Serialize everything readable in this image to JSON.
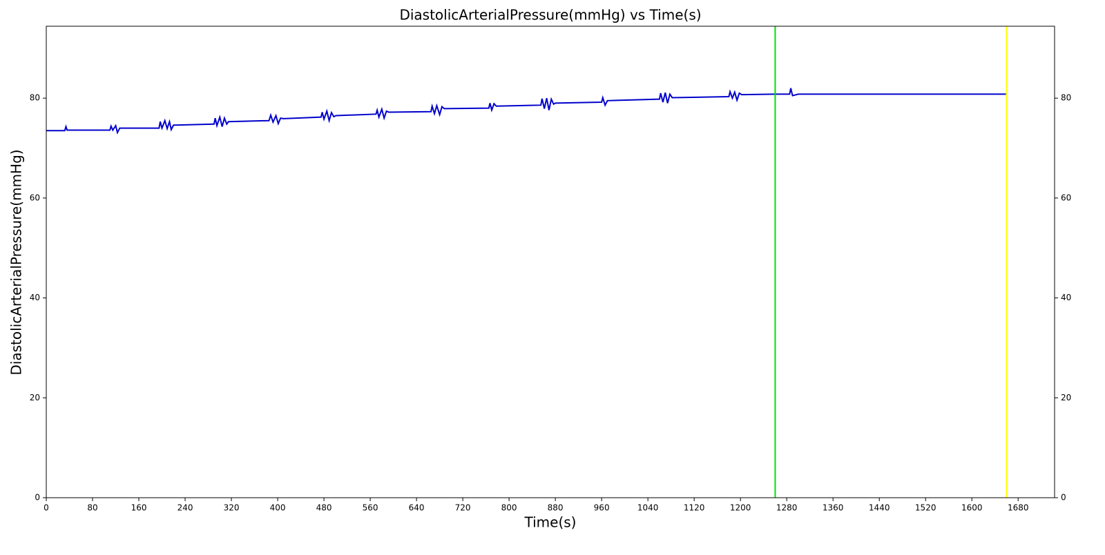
{
  "chart_data": {
    "type": "line",
    "title": "DiastolicArterialPressure(mmHg) vs Time(s)",
    "x_label": "Time(s)",
    "y_label": "DiastolicArterialPressure(mmHg)",
    "xlim": [
      0,
      1743
    ],
    "xticks": [
      0,
      80,
      160,
      240,
      320,
      400,
      480,
      560,
      640,
      720,
      800,
      880,
      960,
      1040,
      1120,
      1200,
      1280,
      1360,
      1440,
      1520,
      1600,
      1680
    ],
    "ylim": [
      0,
      94.4
    ],
    "yticks": [
      0,
      20,
      40,
      60,
      80
    ],
    "y2lim": [
      0,
      94.4
    ],
    "y2ticks": [
      0,
      20,
      40,
      60,
      80
    ],
    "vlines": [
      {
        "x": 1260,
        "color": "#00e000"
      },
      {
        "x": 1660,
        "color": "#ffff00"
      }
    ],
    "series": [
      {
        "name": "DiastolicArterialPressure",
        "color": "#0000cc",
        "x": [
          0,
          32,
          34,
          36,
          110,
          112,
          115,
          120,
          123,
          127,
          195,
          197,
          200,
          205,
          209,
          213,
          216,
          220,
          290,
          292,
          295,
          300,
          304,
          308,
          312,
          315,
          385,
          388,
          392,
          397,
          401,
          405,
          410,
          475,
          477,
          480,
          485,
          489,
          493,
          497,
          501,
          570,
          572,
          575,
          580,
          584,
          588,
          592,
          665,
          667,
          671,
          675,
          680,
          684,
          688,
          765,
          767,
          770,
          774,
          778,
          855,
          857,
          861,
          865,
          869,
          873,
          877,
          880,
          960,
          962,
          966,
          970,
          1060,
          1062,
          1066,
          1070,
          1074,
          1078,
          1082,
          1180,
          1182,
          1186,
          1190,
          1194,
          1198,
          1202,
          1260,
          1285,
          1287,
          1290,
          1300,
          1660
        ],
        "values": [
          73.5,
          73.5,
          74.3,
          73.6,
          73.6,
          74.4,
          73.6,
          74.5,
          73.1,
          74.0,
          74.0,
          75.3,
          74.0,
          75.5,
          73.9,
          75.3,
          73.7,
          74.6,
          74.8,
          76.0,
          74.5,
          76.2,
          74.3,
          76.0,
          74.8,
          75.3,
          75.5,
          76.6,
          75.2,
          76.5,
          74.9,
          76.0,
          75.9,
          76.2,
          77.2,
          75.8,
          77.4,
          75.5,
          77.1,
          76.3,
          76.5,
          76.8,
          77.6,
          76.2,
          77.8,
          76.0,
          77.4,
          77.2,
          77.3,
          78.4,
          76.9,
          78.5,
          76.7,
          78.3,
          77.9,
          78.0,
          79.0,
          77.6,
          78.9,
          78.4,
          78.6,
          79.9,
          77.9,
          80.0,
          77.6,
          79.8,
          78.8,
          79.0,
          79.2,
          80.1,
          78.6,
          79.5,
          79.8,
          81.0,
          79.2,
          81.1,
          79.0,
          80.8,
          80.1,
          80.3,
          81.3,
          80.0,
          81.2,
          79.6,
          81.0,
          80.7,
          80.8,
          80.8,
          82.0,
          80.5,
          80.8,
          80.8
        ]
      }
    ]
  }
}
